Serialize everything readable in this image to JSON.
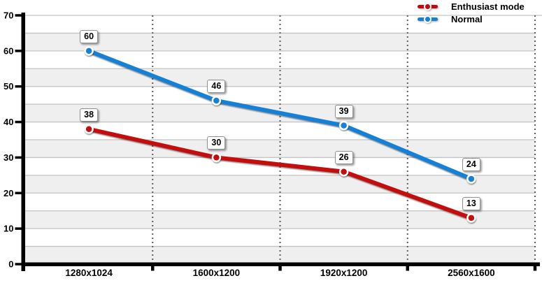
{
  "chart_data": {
    "type": "line",
    "title": "",
    "xlabel": "",
    "ylabel": "",
    "categories": [
      "1280x1024",
      "1600x1200",
      "1920x1200",
      "2560x1600"
    ],
    "series": [
      {
        "name": "Enthusiast mode",
        "color": "#C40808",
        "values": [
          38,
          30,
          26,
          13
        ]
      },
      {
        "name": "Normal",
        "color": "#1480D6",
        "values": [
          60,
          46,
          39,
          24
        ]
      }
    ],
    "ylim": [
      0,
      70
    ],
    "y_ticks": [
      0,
      10,
      20,
      30,
      40,
      50,
      60,
      70
    ],
    "band_step": 5,
    "grid": true,
    "legend_position": "top-right",
    "colors": {
      "band": "#EFEFEF",
      "gridline": "#C3C3C3",
      "dotted_divider": "#5B5B5B",
      "axis": "#000000",
      "label_box_border": "#8F8F8F",
      "label_box_bg": "#FFFFFF",
      "marker_ring": "#FFFFFF"
    }
  }
}
